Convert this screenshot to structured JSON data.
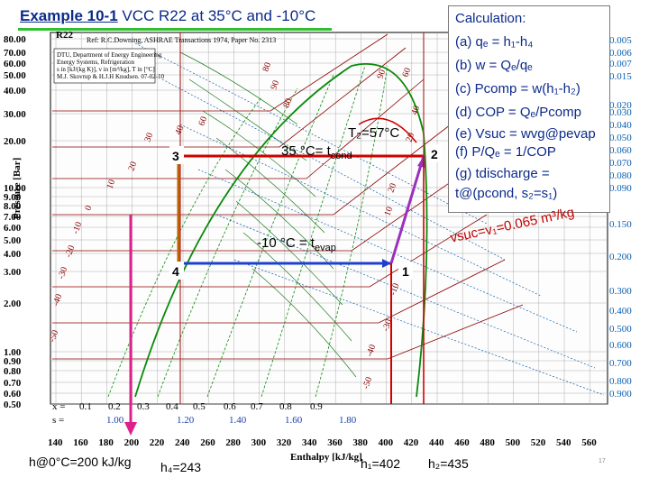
{
  "title": {
    "example": "Example 10-1",
    "rest": " VCC R22 at 35°C and -10°C"
  },
  "chart": {
    "refrigerant": "R22",
    "reference": "Ref: R.C.Downing, ASHRAE Transactions 1974, Paper No. 2313",
    "info_lines": [
      "DTU, Department of Energy Engineering",
      "Energy Systems, Refrigeration",
      "s in [kJ/(kg K)], v in [m³/kg], T in [°C]",
      "M.J. Skovrup & H.J.H Knudsen. 07-02-10"
    ],
    "y_axis_label": "Pressure [Bar]",
    "y_ticks": [
      "80.00",
      "70.00",
      "60.00",
      "50.00",
      "40.00",
      "30.00",
      "20.00",
      "10.00",
      "9.00",
      "8.00",
      "7.00",
      "6.00",
      "5.00",
      "4.00",
      "3.00",
      "2.00",
      "1.00",
      "0.90",
      "0.80",
      "0.70",
      "0.60",
      "0.50"
    ],
    "x_axis_label": "Enthalpy [kJ/kg]",
    "x_ticks": [
      "140",
      "160",
      "180",
      "200",
      "220",
      "240",
      "260",
      "280",
      "300",
      "320",
      "340",
      "360",
      "380",
      "400",
      "420",
      "440",
      "460",
      "480",
      "500",
      "520",
      "540",
      "560"
    ],
    "quality_row_label": "x =",
    "quality_values": [
      "0.1",
      "0.2",
      "0.3",
      "0.4",
      "0.5",
      "0.6",
      "0.7",
      "0.8",
      "0.9"
    ],
    "entropy_row_label": "s =",
    "entropy_values": [
      "1.00",
      "1.20",
      "1.40",
      "1.60",
      "1.80"
    ],
    "temp_labels": [
      "80",
      "90",
      "90",
      "80",
      "60",
      "40",
      "30",
      "20",
      "10",
      "0",
      "-10",
      "-20",
      "-30",
      "-40",
      "-50",
      "60",
      "40",
      "20",
      "20",
      "10",
      "-10",
      "-30",
      "-40",
      "-50"
    ],
    "right_volume_values": [
      "0.005",
      "0.006",
      "0.007",
      "0.015",
      "0.020",
      "0.030",
      "0.040",
      "0.050",
      "0.060",
      "0.070",
      "0.080",
      "0.090",
      "0.150",
      "0.200",
      "0.300",
      "0.400",
      "0.500",
      "0.600",
      "0.700",
      "0.800",
      "0.900"
    ],
    "point_labels": {
      "p1": "1",
      "p2": "2",
      "p3": "3",
      "p4": "4"
    },
    "t2_label": "T₂=57°C",
    "tcond_label": "35 °C= t",
    "tcond_sub": "cond",
    "tevap_label": "-10 °C = t",
    "tevap_sub": "evap"
  },
  "calculation": {
    "heading": "Calculation:",
    "lines": [
      "(a) qₑ = h₁-h₄",
      "(b) w = Qₑ/qₑ",
      "(c) Pcomp = w(h₁-h₂)",
      "(d) COP = Qₑ/Pcomp",
      "(e) Vsuc = wvg@pevap",
      "(f) P/Qₑ = 1/COP",
      "(g) tdischarge =",
      "t@(pcond, s₂=s₁)"
    ]
  },
  "vsuc_label": "vsuc=v₁=0.065 m³/kg",
  "bottom": {
    "h0": "h@0°C=200 kJ/kg",
    "h4": "h₄=243",
    "h1": "h₁=402",
    "h2": "h₂=435"
  },
  "page_number": "17",
  "colors": {
    "title": "#0b2a8a",
    "underline": "#2fbf2f",
    "cycle_red": "#d00000",
    "cycle_blue": "#1f3fd0",
    "cycle_purple": "#9b2fbf",
    "dome_green": "#0a8a0a"
  }
}
